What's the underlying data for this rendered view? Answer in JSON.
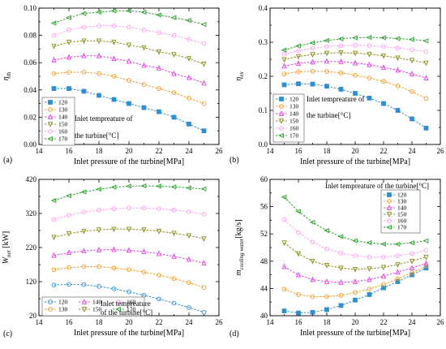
{
  "series_colors": [
    "#2f8fd0",
    "#f39c26",
    "#e33fe0",
    "#8a8f1c",
    "#ffa0f0",
    "#2ca02c"
  ],
  "chart_data": [
    {
      "type": "line",
      "panel_label": "(a)",
      "xlabel": "Inlet pressure of the turbine[MPa]",
      "ylabel": "η",
      "ylabel_sub": "th",
      "xlim": [
        14,
        26
      ],
      "ylim": [
        0.0,
        0.1
      ],
      "xticks": [
        "14",
        "16",
        "18",
        "20",
        "22",
        "24",
        "26"
      ],
      "yticks": [
        "0.00",
        "0.02",
        "0.04",
        "0.06",
        "0.08",
        "0.10"
      ],
      "legend_position": "lower-left",
      "annotation": [
        "Inlet tempreature of",
        "the turbine[°C]"
      ],
      "x": [
        15,
        16,
        17,
        18,
        19,
        20,
        21,
        22,
        23,
        24,
        25
      ],
      "series": [
        {
          "name": "120",
          "marker": "square",
          "values": [
            0.041,
            0.041,
            0.039,
            0.036,
            0.033,
            0.03,
            0.027,
            0.024,
            0.02,
            0.015,
            0.01
          ]
        },
        {
          "name": "130",
          "marker": "circle",
          "values": [
            0.052,
            0.053,
            0.053,
            0.052,
            0.05,
            0.047,
            0.044,
            0.041,
            0.038,
            0.034,
            0.03
          ]
        },
        {
          "name": "140",
          "marker": "triangle-up",
          "values": [
            0.062,
            0.064,
            0.065,
            0.065,
            0.063,
            0.061,
            0.058,
            0.056,
            0.052,
            0.049,
            0.045
          ]
        },
        {
          "name": "150",
          "marker": "triangle-down",
          "values": [
            0.072,
            0.075,
            0.076,
            0.076,
            0.075,
            0.073,
            0.071,
            0.068,
            0.066,
            0.063,
            0.059
          ]
        },
        {
          "name": "160",
          "marker": "circle",
          "values": [
            0.08,
            0.084,
            0.086,
            0.087,
            0.087,
            0.086,
            0.084,
            0.082,
            0.08,
            0.077,
            0.074
          ]
        },
        {
          "name": "170",
          "marker": "triangle-left",
          "values": [
            0.089,
            0.093,
            0.096,
            0.097,
            0.098,
            0.098,
            0.097,
            0.095,
            0.093,
            0.091,
            0.088
          ]
        }
      ]
    },
    {
      "type": "line",
      "panel_label": "(b)",
      "xlabel": "Inlet pressure of the turbine[MPa]",
      "ylabel": "η",
      "ylabel_sub": "ex",
      "xlim": [
        14,
        26
      ],
      "ylim": [
        0.0,
        0.4
      ],
      "xticks": [
        "14",
        "16",
        "18",
        "20",
        "22",
        "24",
        "26"
      ],
      "yticks": [
        "0.0",
        "0.1",
        "0.2",
        "0.3",
        "0.4"
      ],
      "legend_position": "lower-left",
      "annotation": [
        "Inlet tempreature of",
        "the turbine[°C]"
      ],
      "x": [
        15,
        16,
        17,
        18,
        19,
        20,
        21,
        22,
        23,
        24,
        25
      ],
      "series": [
        {
          "name": "120",
          "marker": "square",
          "values": [
            0.175,
            0.178,
            0.177,
            0.171,
            0.162,
            0.15,
            0.136,
            0.12,
            0.1,
            0.075,
            0.048
          ]
        },
        {
          "name": "130",
          "marker": "circle",
          "values": [
            0.207,
            0.213,
            0.215,
            0.214,
            0.21,
            0.203,
            0.195,
            0.185,
            0.172,
            0.155,
            0.135
          ]
        },
        {
          "name": "140",
          "marker": "triangle-up",
          "values": [
            0.23,
            0.238,
            0.242,
            0.244,
            0.243,
            0.239,
            0.234,
            0.226,
            0.218,
            0.207,
            0.195
          ]
        },
        {
          "name": "150",
          "marker": "triangle-down",
          "values": [
            0.249,
            0.258,
            0.264,
            0.268,
            0.269,
            0.268,
            0.265,
            0.26,
            0.254,
            0.247,
            0.239
          ]
        },
        {
          "name": "160",
          "marker": "circle",
          "values": [
            0.265,
            0.275,
            0.282,
            0.287,
            0.29,
            0.291,
            0.29,
            0.287,
            0.283,
            0.278,
            0.272
          ]
        },
        {
          "name": "170",
          "marker": "triangle-left",
          "values": [
            0.277,
            0.289,
            0.298,
            0.305,
            0.31,
            0.313,
            0.314,
            0.313,
            0.311,
            0.308,
            0.304
          ]
        }
      ]
    },
    {
      "type": "line",
      "panel_label": "(c)",
      "xlabel": "Inlet pressure of the turbine[MPa]",
      "ylabel": "W",
      "ylabel_sub": "net",
      "ylabel_suffix": " [kW]",
      "xlim": [
        14,
        26
      ],
      "ylim": [
        20,
        420
      ],
      "xticks": [
        "14",
        "16",
        "18",
        "20",
        "22",
        "24",
        "26"
      ],
      "yticks": [
        "20",
        "120",
        "220",
        "320",
        "420"
      ],
      "legend_position": "bottom",
      "legend_columns": 3,
      "annotation": [
        "Inlet tempreature",
        "of the turbine[°C]"
      ],
      "x": [
        15,
        16,
        17,
        18,
        19,
        20,
        21,
        22,
        23,
        24,
        25
      ],
      "series": [
        {
          "name": "120",
          "marker": "circle",
          "values": [
            110,
            112,
            111,
            106,
            99,
            90,
            80,
            69,
            57,
            44,
            30
          ]
        },
        {
          "name": "130",
          "marker": "circle",
          "values": [
            155,
            161,
            164,
            164,
            160,
            155,
            148,
            139,
            129,
            117,
            103
          ]
        },
        {
          "name": "140",
          "marker": "triangle-up",
          "values": [
            197,
            205,
            210,
            213,
            214,
            212,
            208,
            202,
            194,
            185,
            175
          ]
        },
        {
          "name": "150",
          "marker": "triangle-down",
          "values": [
            250,
            261,
            268,
            272,
            274,
            274,
            272,
            268,
            262,
            255,
            246
          ]
        },
        {
          "name": "160",
          "marker": "circle",
          "values": [
            302,
            315,
            324,
            330,
            334,
            336,
            336,
            334,
            330,
            325,
            318
          ]
        },
        {
          "name": "170",
          "marker": "triangle-left",
          "values": [
            358,
            372,
            383,
            391,
            397,
            400,
            401,
            400,
            398,
            395,
            392
          ]
        }
      ]
    },
    {
      "type": "line",
      "panel_label": "(d)",
      "xlabel": "Inlet pressure of the turbine[MPa]",
      "ylabel": "m",
      "ylabel_sub": "cooling water",
      "ylabel_suffix": "[kg/s]",
      "xlim": [
        14,
        26
      ],
      "ylim": [
        40,
        60
      ],
      "xticks": [
        "14",
        "16",
        "18",
        "20",
        "22",
        "24",
        "26"
      ],
      "yticks": [
        "40",
        "44",
        "48",
        "52",
        "56",
        "60"
      ],
      "legend_position": "top-right",
      "annotation": [
        "Inlet tempreature of the turbine[°C]"
      ],
      "x": [
        15,
        16,
        17,
        18,
        19,
        20,
        21,
        22,
        23,
        24,
        25
      ],
      "series": [
        {
          "name": "120",
          "marker": "square",
          "values": [
            40.7,
            40.4,
            40.5,
            40.9,
            41.5,
            42.3,
            43.1,
            44.1,
            45.0,
            46.0,
            47.0
          ]
        },
        {
          "name": "130",
          "marker": "circle",
          "values": [
            43.9,
            43.1,
            42.8,
            42.8,
            43.0,
            43.4,
            43.9,
            44.6,
            45.4,
            46.3,
            47.3
          ]
        },
        {
          "name": "140",
          "marker": "triangle-up",
          "values": [
            47.2,
            46.0,
            45.3,
            45.0,
            44.9,
            45.0,
            45.3,
            45.8,
            46.4,
            47.0,
            47.7
          ]
        },
        {
          "name": "150",
          "marker": "triangle-down",
          "values": [
            50.7,
            49.1,
            48.0,
            47.4,
            47.0,
            46.8,
            46.9,
            47.1,
            47.5,
            48.0,
            48.6
          ]
        },
        {
          "name": "160",
          "marker": "circle",
          "values": [
            54.1,
            52.2,
            50.8,
            49.8,
            49.2,
            48.8,
            48.6,
            48.6,
            48.8,
            49.1,
            49.6
          ]
        },
        {
          "name": "170",
          "marker": "triangle-left",
          "values": [
            57.4,
            55.3,
            53.7,
            52.5,
            51.6,
            51.0,
            50.7,
            50.5,
            50.5,
            50.7,
            51.0
          ]
        }
      ]
    }
  ]
}
